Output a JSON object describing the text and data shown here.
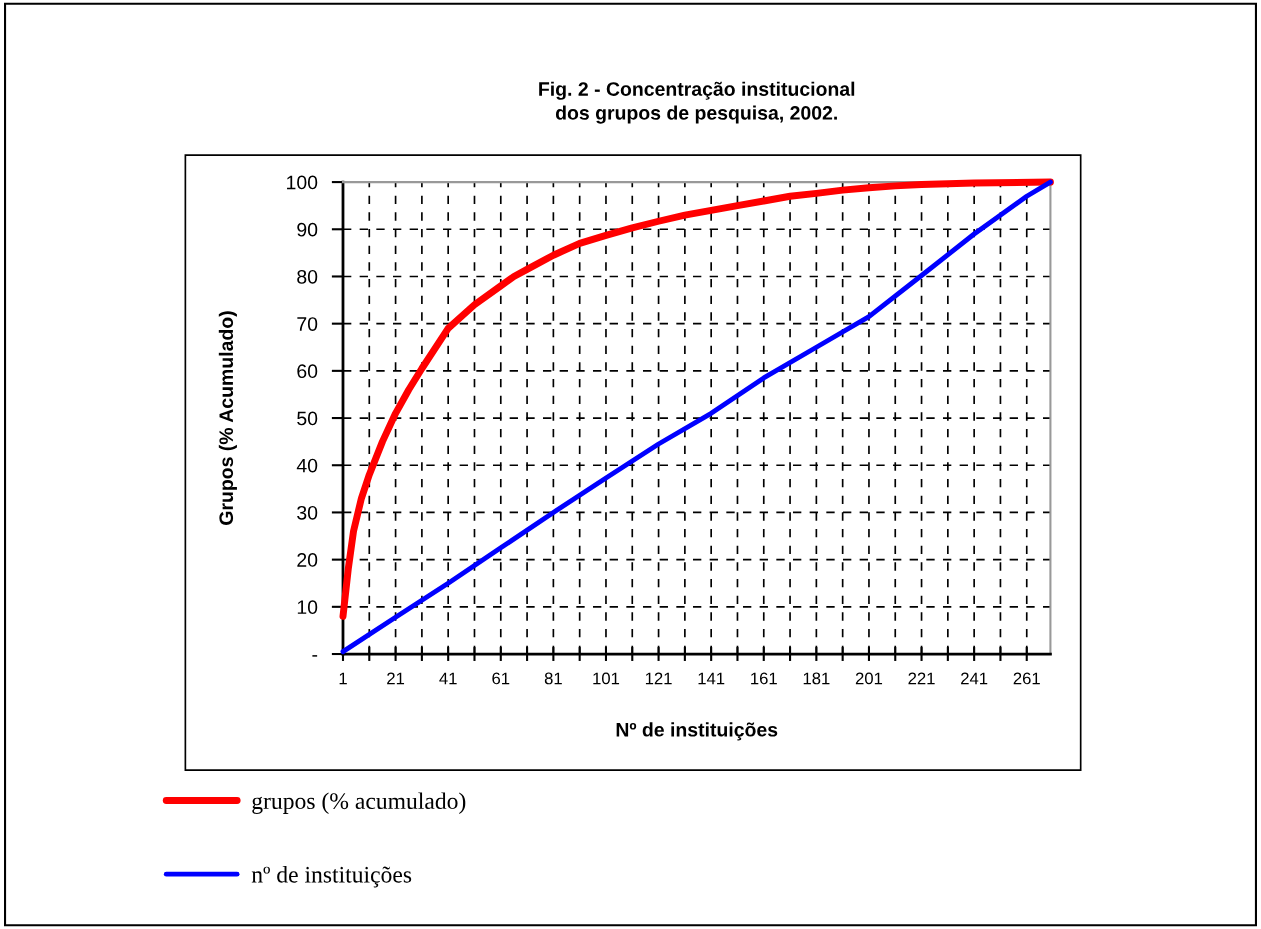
{
  "chart_data": {
    "type": "line",
    "title": "Fig. 2 - Concentração institucional\ndos grupos de pesquisa, 2002.",
    "xlabel": "Nº de instituições",
    "ylabel": "Grupos (% Acumulado)",
    "series": [
      {
        "name": "grupos (% acumulado)",
        "color": "#ff0000",
        "x": [
          1,
          3,
          5,
          8,
          11,
          16,
          21,
          26,
          31,
          41,
          51,
          61,
          66,
          71,
          81,
          91,
          101,
          111,
          121,
          131,
          141,
          151,
          161,
          171,
          181,
          191,
          201,
          211,
          221,
          241,
          270
        ],
        "values": [
          8,
          18,
          26,
          33,
          38,
          45,
          51,
          56,
          60.5,
          69,
          74,
          78,
          80,
          81.5,
          84.5,
          87,
          88.7,
          90.3,
          91.7,
          93,
          94,
          95,
          96,
          97,
          97.6,
          98.3,
          98.8,
          99.2,
          99.5,
          99.8,
          100
        ]
      },
      {
        "name": "nº de instituições",
        "color": "#0000ff",
        "x": [
          1,
          21,
          41,
          61,
          81,
          101,
          121,
          141,
          161,
          181,
          201,
          221,
          241,
          261,
          270
        ],
        "values": [
          0.5,
          7.8,
          15,
          22.5,
          30,
          37.3,
          44.5,
          51,
          58.5,
          65,
          71.5,
          80.2,
          89,
          97,
          100
        ]
      }
    ],
    "xlim": [
      1,
      270
    ],
    "xticks": [
      1,
      {
        "value": 11,
        "label": null
      },
      21,
      {
        "value": 31,
        "label": null
      },
      41,
      {
        "value": 51,
        "label": null
      },
      61,
      {
        "value": 71,
        "label": null
      },
      81,
      {
        "value": 91,
        "label": null
      },
      101,
      {
        "value": 111,
        "label": null
      },
      121,
      {
        "value": 131,
        "label": null
      },
      141,
      {
        "value": 151,
        "label": null
      },
      161,
      {
        "value": 171,
        "label": null
      },
      181,
      {
        "value": 191,
        "label": null
      },
      201,
      {
        "value": 211,
        "label": null
      },
      221,
      {
        "value": 231,
        "label": null
      },
      241,
      {
        "value": 251,
        "label": null
      },
      261
    ],
    "ylim": [
      0,
      100
    ],
    "yticks": [
      {
        "value": 0,
        "label": "-"
      },
      10,
      20,
      30,
      40,
      50,
      60,
      70,
      80,
      90,
      100
    ],
    "grid": true,
    "line_style": "solid",
    "marker": "none",
    "legend": "bottom"
  }
}
